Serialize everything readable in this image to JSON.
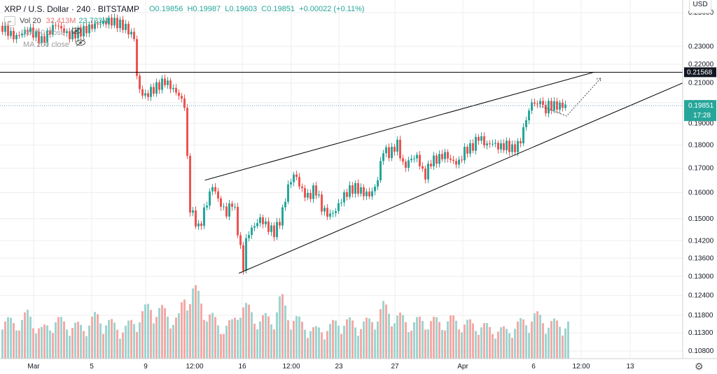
{
  "header": {
    "symbol": "XRP / U.S. Dollar",
    "interval": "240",
    "exchange": "BITSTAMP",
    "open_label": "O",
    "open": "0.19856",
    "high_label": "H",
    "high": "0.19987",
    "low_label": "L",
    "low": "0.19603",
    "close_label": "C",
    "close": "0.19851",
    "change": "+0.00022 (+0.11%)",
    "vol_label": "Vol 20",
    "vol_a": "32.413M",
    "vol_b": "23.723M",
    "ma50": "MA 50 close",
    "ma200": "MA 200 close",
    "collapse_glyph": "⌄",
    "eye_icon": "eye-crossed-icon"
  },
  "currency": "USD",
  "settings_icon": "gear-icon",
  "colors": {
    "up": "#26a69a",
    "down": "#ef5350",
    "up_volume": "#9fd4cf",
    "down_volume": "#f4a9a6",
    "price_line": "#5b9bd5",
    "trendline": "#000000",
    "grid": "#eeeeee"
  },
  "chart_data": {
    "type": "candlestick",
    "symbol": "XRP / U.S. Dollar",
    "timeframe": "240",
    "x_ticks": [
      "Mar",
      "5",
      "9",
      "12:00",
      "16",
      "12:00",
      "23",
      "27",
      "Apr",
      "6",
      "12:00",
      "13"
    ],
    "y_ticks": [
      "0.25000",
      "0.23000",
      "0.22000",
      "0.21000",
      "0.20000",
      "0.19000",
      "0.18000",
      "0.17000",
      "0.16000",
      "0.15000",
      "0.14200",
      "0.13600",
      "0.13000",
      "0.12400",
      "0.11800",
      "0.11300",
      "0.10800"
    ],
    "ylim": [
      0.106,
      0.258
    ],
    "scale": "log",
    "current_price": {
      "value": 0.19851,
      "label": "0.19851",
      "countdown": "17:28"
    },
    "horizontal_line": {
      "value": 0.21568,
      "label": "0.21568"
    },
    "rising_wedge": {
      "upper": [
        [
          0.3,
          0.165
        ],
        [
          0.87,
          0.2157
        ]
      ],
      "lower": [
        [
          0.35,
          0.131
        ],
        [
          1.0,
          0.21
        ]
      ]
    },
    "projection_path": [
      [
        0.79,
        0.1985
      ],
      [
        0.83,
        0.1935
      ],
      [
        0.88,
        0.2125
      ]
    ],
    "price_path": [
      [
        0.0,
        0.242
      ],
      [
        0.02,
        0.235
      ],
      [
        0.04,
        0.24
      ],
      [
        0.06,
        0.233
      ],
      [
        0.08,
        0.243
      ],
      [
        0.1,
        0.236
      ],
      [
        0.12,
        0.239
      ],
      [
        0.14,
        0.243
      ],
      [
        0.16,
        0.245
      ],
      [
        0.18,
        0.242
      ],
      [
        0.195,
        0.235
      ],
      [
        0.2,
        0.208
      ],
      [
        0.21,
        0.203
      ],
      [
        0.22,
        0.206
      ],
      [
        0.24,
        0.211
      ],
      [
        0.26,
        0.204
      ],
      [
        0.27,
        0.198
      ],
      [
        0.275,
        0.155
      ],
      [
        0.28,
        0.152
      ],
      [
        0.29,
        0.146
      ],
      [
        0.3,
        0.155
      ],
      [
        0.31,
        0.163
      ],
      [
        0.32,
        0.156
      ],
      [
        0.33,
        0.152
      ],
      [
        0.34,
        0.157
      ],
      [
        0.35,
        0.14
      ],
      [
        0.355,
        0.133
      ],
      [
        0.36,
        0.144
      ],
      [
        0.37,
        0.147
      ],
      [
        0.38,
        0.15
      ],
      [
        0.39,
        0.147
      ],
      [
        0.4,
        0.145
      ],
      [
        0.41,
        0.15
      ],
      [
        0.42,
        0.162
      ],
      [
        0.43,
        0.168
      ],
      [
        0.44,
        0.161
      ],
      [
        0.45,
        0.158
      ],
      [
        0.46,
        0.162
      ],
      [
        0.47,
        0.154
      ],
      [
        0.48,
        0.151
      ],
      [
        0.49,
        0.153
      ],
      [
        0.5,
        0.158
      ],
      [
        0.51,
        0.161
      ],
      [
        0.52,
        0.162
      ],
      [
        0.53,
        0.16
      ],
      [
        0.54,
        0.159
      ],
      [
        0.55,
        0.163
      ],
      [
        0.56,
        0.178
      ],
      [
        0.57,
        0.176
      ],
      [
        0.58,
        0.181
      ],
      [
        0.59,
        0.17
      ],
      [
        0.6,
        0.174
      ],
      [
        0.61,
        0.175
      ],
      [
        0.62,
        0.166
      ],
      [
        0.63,
        0.173
      ],
      [
        0.64,
        0.174
      ],
      [
        0.65,
        0.176
      ],
      [
        0.66,
        0.173
      ],
      [
        0.67,
        0.172
      ],
      [
        0.68,
        0.178
      ],
      [
        0.69,
        0.179
      ],
      [
        0.7,
        0.184
      ],
      [
        0.71,
        0.18
      ],
      [
        0.72,
        0.181
      ],
      [
        0.73,
        0.179
      ],
      [
        0.74,
        0.18
      ],
      [
        0.75,
        0.178
      ],
      [
        0.76,
        0.181
      ],
      [
        0.77,
        0.193
      ],
      [
        0.78,
        0.202
      ],
      [
        0.785,
        0.197
      ],
      [
        0.79,
        0.203
      ],
      [
        0.795,
        0.195
      ],
      [
        0.8,
        0.1985
      ]
    ],
    "volume": [
      [
        0.0,
        0.55
      ],
      [
        0.02,
        0.5
      ],
      [
        0.04,
        0.62
      ],
      [
        0.06,
        0.4
      ],
      [
        0.08,
        0.55
      ],
      [
        0.1,
        0.48
      ],
      [
        0.12,
        0.45
      ],
      [
        0.14,
        0.6
      ],
      [
        0.16,
        0.5
      ],
      [
        0.18,
        0.42
      ],
      [
        0.2,
        0.58
      ],
      [
        0.22,
        0.75
      ],
      [
        0.24,
        0.65
      ],
      [
        0.26,
        0.55
      ],
      [
        0.27,
        0.92
      ],
      [
        0.28,
        1.0
      ],
      [
        0.29,
        0.85
      ],
      [
        0.3,
        0.7
      ],
      [
        0.32,
        0.45
      ],
      [
        0.34,
        0.5
      ],
      [
        0.35,
        0.8
      ],
      [
        0.36,
        0.7
      ],
      [
        0.38,
        0.55
      ],
      [
        0.4,
        0.6
      ],
      [
        0.41,
        0.85
      ],
      [
        0.42,
        0.65
      ],
      [
        0.44,
        0.5
      ],
      [
        0.46,
        0.4
      ],
      [
        0.48,
        0.45
      ],
      [
        0.5,
        0.55
      ],
      [
        0.52,
        0.48
      ],
      [
        0.54,
        0.52
      ],
      [
        0.56,
        0.72
      ],
      [
        0.58,
        0.6
      ],
      [
        0.6,
        0.5
      ],
      [
        0.62,
        0.55
      ],
      [
        0.64,
        0.52
      ],
      [
        0.66,
        0.55
      ],
      [
        0.68,
        0.5
      ],
      [
        0.7,
        0.48
      ],
      [
        0.72,
        0.42
      ],
      [
        0.74,
        0.4
      ],
      [
        0.76,
        0.5
      ],
      [
        0.77,
        0.55
      ],
      [
        0.78,
        0.6
      ],
      [
        0.79,
        0.58
      ],
      [
        0.8,
        0.55
      ]
    ]
  }
}
